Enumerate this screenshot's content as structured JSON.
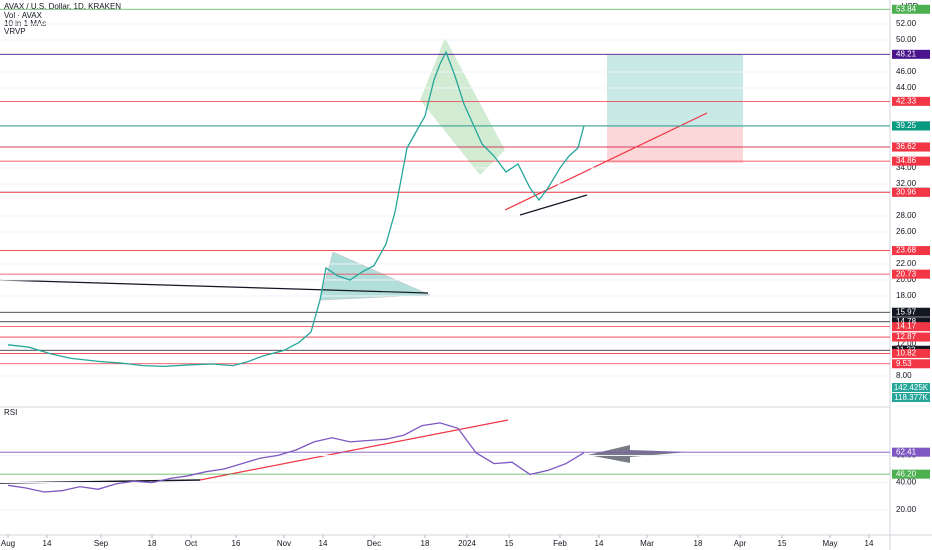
{
  "chart_data": [
    {
      "type": "line",
      "title": "AVAX / U.S. Dollar, 1D, KRAKEN",
      "indicators": [
        "Vol · AVAX",
        "10 in 1 MAs",
        "VRVP"
      ],
      "currency": "USD",
      "color": "#26a69a",
      "x": [
        0,
        7,
        14,
        21,
        31,
        38,
        45,
        52,
        61,
        68,
        75,
        80,
        85,
        92,
        97,
        101,
        104,
        106,
        110,
        114,
        118,
        122,
        126,
        129,
        131,
        133,
        136,
        139,
        142,
        144,
        146,
        149,
        152,
        155,
        158,
        162,
        166,
        170,
        174,
        177,
        180,
        184,
        187,
        190,
        192
      ],
      "values": [
        11.9,
        11.6,
        10.8,
        10.2,
        9.8,
        9.6,
        9.3,
        9.2,
        9.4,
        9.5,
        9.3,
        9.8,
        10.5,
        11.2,
        12.2,
        13.5,
        17.5,
        21.5,
        20.5,
        20,
        21,
        21.8,
        24.5,
        28.5,
        32.5,
        36.5,
        38.5,
        40.5,
        45,
        47,
        48.5,
        45.5,
        42,
        39.5,
        37,
        35.5,
        33.5,
        34.5,
        31.5,
        30,
        31.5,
        34,
        35.5,
        36.5,
        39.3
      ],
      "xlim": [
        -2.67,
        294
      ],
      "ylim": [
        4.375,
        55
      ],
      "yticks": [
        {
          "value": 8,
          "label": "8.00"
        },
        {
          "value": 12,
          "label": "12.00"
        },
        {
          "value": 18,
          "label": "18.00"
        },
        {
          "value": 20,
          "label": "20.00"
        },
        {
          "value": 22,
          "label": "22.00"
        },
        {
          "value": 26,
          "label": "26.00"
        },
        {
          "value": 28,
          "label": "28.00"
        },
        {
          "value": 32,
          "label": "32.00"
        },
        {
          "value": 34,
          "label": "34.00"
        },
        {
          "value": 44,
          "label": "44.00"
        },
        {
          "value": 46,
          "label": "46.00"
        },
        {
          "value": 50,
          "label": "50.00"
        },
        {
          "value": 52,
          "label": "52.00"
        }
      ],
      "levels": [
        {
          "value": 53.84,
          "color": "#4caf50"
        },
        {
          "value": 48.21,
          "color": "#4a148c"
        },
        {
          "value": 42.33,
          "color": "#f23645"
        },
        {
          "value": 39.29,
          "color": "#b2b5be"
        },
        {
          "value": 39.25,
          "color": "#089981"
        },
        {
          "value": 36.63,
          "color": "#2962ff"
        },
        {
          "value": 36.62,
          "color": "#f23645"
        },
        {
          "value": 34.86,
          "color": "#f23645"
        },
        {
          "value": 30.98,
          "color": "#787b86"
        },
        {
          "value": 30.96,
          "color": "#f23645"
        },
        {
          "value": 23.68,
          "color": "#f23645"
        },
        {
          "value": 20.73,
          "color": "#f23645"
        },
        {
          "value": 15.97,
          "color": "#131722"
        },
        {
          "value": 14.78,
          "color": "#131722"
        },
        {
          "value": 14.17,
          "color": "#f23645"
        },
        {
          "value": 12.87,
          "color": "#f23645"
        },
        {
          "value": 11.22,
          "color": "#131722"
        },
        {
          "value": 10.82,
          "color": "#f23645"
        },
        {
          "value": 9.53,
          "color": "#f23645"
        }
      ],
      "volume_tags": [
        "142.425K",
        "118.377K"
      ]
    },
    {
      "type": "line",
      "title": "RSI",
      "color": "#7e57c2",
      "x": [
        0,
        6,
        12,
        18,
        24,
        30,
        36,
        42,
        48,
        54,
        60,
        66,
        72,
        78,
        84,
        90,
        96,
        102,
        108,
        114,
        120,
        126,
        132,
        138,
        144,
        150,
        156,
        162,
        168,
        174,
        180,
        186,
        192
      ],
      "values": [
        38,
        36,
        33,
        34,
        37,
        35,
        39,
        41,
        40,
        43,
        45,
        48,
        50,
        54,
        58,
        60,
        64,
        70,
        73,
        70,
        71,
        72,
        75,
        82,
        84,
        80,
        62,
        54,
        55,
        46,
        49,
        54,
        62
      ],
      "xlim": [
        -2.67,
        294
      ],
      "ylim": [
        5,
        95
      ],
      "yticks": [
        {
          "value": 20,
          "label": "20.00"
        },
        {
          "value": 40,
          "label": "40.00"
        },
        {
          "value": 60,
          "label": "60.00"
        }
      ],
      "levels": [
        {
          "value": 62.41,
          "color": "#7e57c2"
        },
        {
          "value": 46.2,
          "label": "46.20",
          "color": "#4caf50"
        }
      ],
      "xticks": [
        {
          "value": 0,
          "label": "Aug"
        },
        {
          "value": 13,
          "label": "14"
        },
        {
          "value": 31,
          "label": "Sep"
        },
        {
          "value": 48,
          "label": "18"
        },
        {
          "value": 61,
          "label": "Oct"
        },
        {
          "value": 76,
          "label": "16"
        },
        {
          "value": 92,
          "label": "Nov"
        },
        {
          "value": 105,
          "label": "14"
        },
        {
          "value": 122,
          "label": "Dec"
        },
        {
          "value": 139,
          "label": "18"
        },
        {
          "value": 153,
          "label": "2024"
        },
        {
          "value": 167,
          "label": "15"
        },
        {
          "value": 184,
          "label": "Feb"
        },
        {
          "value": 197,
          "label": "14"
        },
        {
          "value": 213,
          "label": "Mar"
        },
        {
          "value": 230,
          "label": "18"
        },
        {
          "value": 244,
          "label": "Apr"
        },
        {
          "value": 258,
          "label": "15"
        },
        {
          "value": 274,
          "label": "May"
        },
        {
          "value": 287,
          "label": "14"
        }
      ]
    }
  ]
}
